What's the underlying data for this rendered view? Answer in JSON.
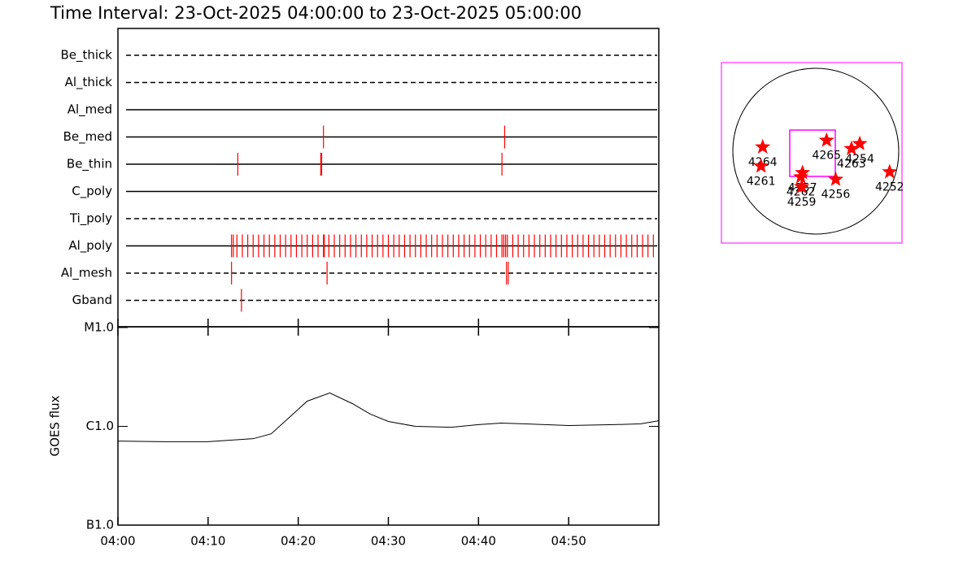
{
  "chart_data": {
    "type": "timeline",
    "title": "Time Interval: 23-Oct-2025 04:00:00 to 23-Oct-2025 05:00:00",
    "xlim": [
      0,
      60
    ],
    "xticks": [
      {
        "value": 0,
        "label": "04:00"
      },
      {
        "value": 10,
        "label": "04:10"
      },
      {
        "value": 20,
        "label": "04:20"
      },
      {
        "value": 30,
        "label": "04:30"
      },
      {
        "value": 40,
        "label": "04:40"
      },
      {
        "value": 50,
        "label": "04:50"
      }
    ],
    "event_color": "#ff0000",
    "filters": [
      {
        "name": "Be_thick",
        "style": "dashed",
        "events": []
      },
      {
        "name": "Al_thick",
        "style": "dashed",
        "events": []
      },
      {
        "name": "Al_med",
        "style": "solid",
        "events": []
      },
      {
        "name": "Be_med",
        "style": "solid",
        "events": [
          22.8,
          42.9
        ]
      },
      {
        "name": "Be_thin",
        "style": "solid",
        "events": [
          13.3,
          22.5,
          22.6,
          42.6
        ]
      },
      {
        "name": "C_poly",
        "style": "solid",
        "events": []
      },
      {
        "name": "Ti_poly",
        "style": "dashed",
        "events": []
      },
      {
        "name": "Al_poly",
        "style": "solid",
        "events": [
          12.6,
          12.8,
          13.2,
          13.8,
          14.4,
          15.0,
          15.6,
          16.2,
          16.8,
          17.4,
          18.0,
          18.6,
          19.2,
          19.8,
          20.4,
          21.0,
          21.6,
          22.2,
          22.8,
          22.9,
          23.4,
          24.0,
          24.6,
          25.2,
          25.8,
          26.4,
          27.0,
          27.6,
          28.2,
          28.8,
          29.4,
          30.0,
          30.6,
          31.2,
          31.8,
          32.4,
          33.0,
          33.6,
          34.2,
          34.8,
          35.4,
          36.0,
          36.6,
          37.2,
          37.8,
          38.4,
          39.0,
          39.6,
          40.2,
          40.8,
          41.4,
          42.0,
          42.6,
          42.8,
          43.0,
          43.2,
          43.8,
          44.4,
          45.0,
          45.6,
          46.2,
          46.8,
          47.4,
          48.0,
          48.6,
          49.2,
          49.8,
          50.4,
          51.0,
          51.6,
          52.2,
          52.8,
          53.4,
          54.0,
          54.6,
          55.2,
          55.8,
          56.4,
          57.0,
          57.6,
          58.2,
          58.8,
          59.4
        ]
      },
      {
        "name": "Al_mesh",
        "style": "dashed",
        "events": [
          12.6,
          23.2,
          43.1,
          43.3
        ]
      },
      {
        "name": "Gband",
        "style": "dashed",
        "events": [
          13.7
        ]
      }
    ],
    "goes": {
      "ylabel": "GOES flux",
      "log_scale": true,
      "ylim": [
        1e-07,
        1e-05
      ],
      "yticks": [
        {
          "value": 1e-07,
          "label": "B1.0"
        },
        {
          "value": 1e-06,
          "label": "C1.0"
        },
        {
          "value": 1e-05,
          "label": "M1.0"
        }
      ],
      "x": [
        0,
        5,
        10,
        15,
        17,
        19,
        21,
        23.5,
        26,
        28,
        30,
        33,
        37,
        40,
        42.5,
        45,
        50,
        55,
        58,
        60
      ],
      "values": [
        7.1e-07,
        7e-07,
        7e-07,
        7.5e-07,
        8.4e-07,
        1.23e-06,
        1.8e-06,
        2.18e-06,
        1.7e-06,
        1.33e-06,
        1.12e-06,
        1e-06,
        9.8e-07,
        1.04e-06,
        1.08e-06,
        1.06e-06,
        1.02e-06,
        1.04e-06,
        1.06e-06,
        1.14e-06
      ],
      "color": "#000000"
    },
    "sun_map": {
      "star_color": "#ff0000",
      "box_color": "#ff00ff",
      "regions": [
        {
          "label": "4264",
          "x": -0.64,
          "y": 0.05
        },
        {
          "label": "4261",
          "x": -0.66,
          "y": -0.18
        },
        {
          "label": "4265",
          "x": 0.13,
          "y": 0.13
        },
        {
          "label": "4263",
          "x": 0.43,
          "y": 0.03
        },
        {
          "label": "4254",
          "x": 0.53,
          "y": 0.09
        },
        {
          "label": "4252",
          "x": 0.89,
          "y": -0.25
        },
        {
          "label": "4256",
          "x": 0.24,
          "y": -0.34
        },
        {
          "label": "4257",
          "x": -0.16,
          "y": -0.26
        },
        {
          "label": "4262",
          "x": -0.18,
          "y": -0.31
        },
        {
          "label": "4259",
          "x": -0.17,
          "y": -0.43
        }
      ]
    }
  }
}
